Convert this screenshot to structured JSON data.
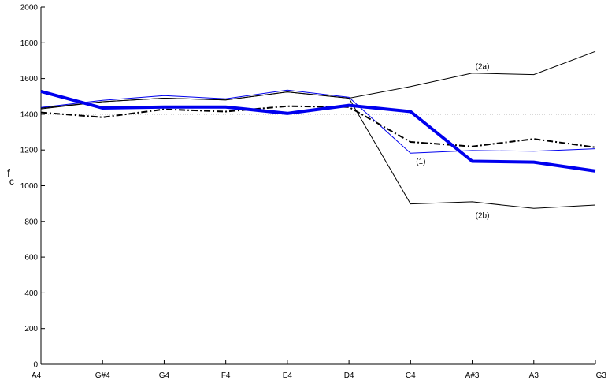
{
  "chart_data": {
    "type": "line",
    "title": "",
    "xlabel": "",
    "ylabel": "f",
    "ylabel_sub": "c",
    "categories": [
      "A4",
      "G#4",
      "G4",
      "F4",
      "E4",
      "D4",
      "C4",
      "A#3",
      "A3",
      "G3"
    ],
    "ylim": [
      0,
      2000
    ],
    "yticks": [
      0,
      200,
      400,
      600,
      800,
      1000,
      1200,
      1400,
      1600,
      1800,
      2000
    ],
    "grid": false,
    "reference_line": {
      "value": 1400,
      "style": "dotted",
      "color": "#999999"
    },
    "series": [
      {
        "values": [
          1435,
          1470,
          1490,
          1480,
          1525,
          1490,
          1555,
          1630,
          1622,
          1752
        ],
        "color": "#000000",
        "width": 1,
        "dash": ""
      },
      {
        "values": [
          1430,
          1470,
          1490,
          1480,
          1525,
          1490,
          898,
          910,
          873,
          892
        ],
        "color": "#000000",
        "width": 1,
        "dash": ""
      },
      {
        "values": [
          1438,
          1478,
          1504,
          1487,
          1535,
          1495,
          1182,
          1197,
          1193,
          1207
        ],
        "color": "#0000ee",
        "width": 1,
        "dash": ""
      },
      {
        "values": [
          1410,
          1383,
          1428,
          1415,
          1445,
          1440,
          1245,
          1220,
          1262,
          1215
        ],
        "color": "#000000",
        "width": 2,
        "dash": "8,3,2,3"
      },
      {
        "values": [
          1528,
          1435,
          1440,
          1440,
          1405,
          1450,
          1415,
          1137,
          1132,
          1082
        ],
        "color": "#0000ee",
        "width": 4,
        "dash": ""
      }
    ],
    "annotations": [
      {
        "text": "(2a)",
        "x": "A#3",
        "y": 1672
      },
      {
        "text": "(1)",
        "x": "C4",
        "y": 1140
      },
      {
        "text": "(2b)",
        "x": "A#3",
        "y": 836
      }
    ]
  }
}
